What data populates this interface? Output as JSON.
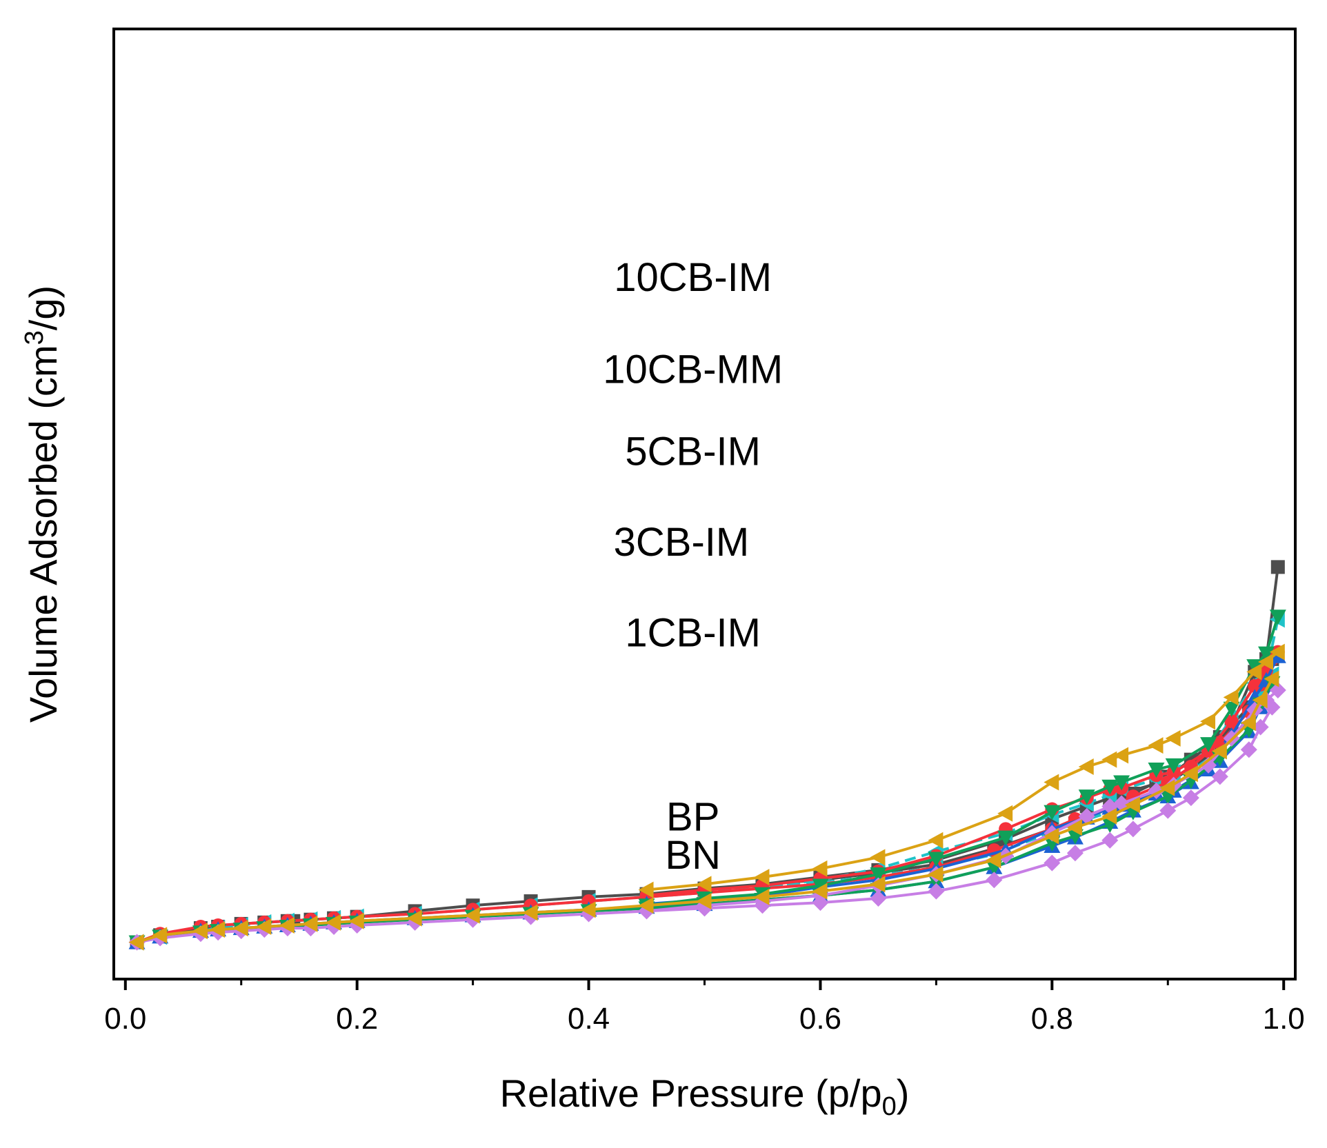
{
  "chart_data": {
    "type": "line",
    "xlabel": "Relative Pressure (p/p",
    "xlabel_sub": "0",
    "xlabel_end": ")",
    "ylabel": "Volume Adsorbed (cm",
    "ylabel_sup": "3",
    "ylabel_end": "/g)",
    "xlim": [
      -0.01,
      1.01
    ],
    "ylim": [
      -0.26,
      6.45
    ],
    "x_ticks": [
      0.0,
      0.2,
      0.4,
      0.6,
      0.8,
      1.0
    ],
    "x_tick_labels": [
      "0.0",
      "0.2",
      "0.4",
      "0.6",
      "0.8",
      "1.0"
    ],
    "y_ticks_shown": false,
    "grid": false,
    "legend": "inline labels above each curve",
    "series": [
      {
        "name": "BN",
        "color": "#4d4d4d",
        "marker": "square",
        "dashed": false,
        "label_at": [
          0.49,
          0.52
        ],
        "adsorption_x": [
          0.01,
          0.03,
          0.065,
          0.08,
          0.1,
          0.12,
          0.14,
          0.145,
          0.16,
          0.18,
          0.2,
          0.25,
          0.3,
          0.35,
          0.4,
          0.45,
          0.5,
          0.55,
          0.6,
          0.65,
          0.7,
          0.75,
          0.8,
          0.82,
          0.85,
          0.87,
          0.9,
          0.92,
          0.945,
          0.97,
          0.98,
          0.99
        ],
        "adsorption_y": [
          0.0,
          0.05,
          0.1,
          0.11,
          0.13,
          0.14,
          0.15,
          0.15,
          0.16,
          0.17,
          0.18,
          0.22,
          0.26,
          0.29,
          0.32,
          0.34,
          0.37,
          0.41,
          0.44,
          0.49,
          0.55,
          0.66,
          0.8,
          0.84,
          0.95,
          1.05,
          1.17,
          1.29,
          1.45,
          1.66,
          1.85,
          2.0
        ],
        "desorption_x": [
          0.995,
          0.985,
          0.975,
          0.955,
          0.935,
          0.905,
          0.89,
          0.86,
          0.85,
          0.83,
          0.8,
          0.76,
          0.7,
          0.65,
          0.6,
          0.55,
          0.5,
          0.45
        ],
        "desorption_y": [
          2.65,
          2.0,
          1.91,
          1.53,
          1.31,
          1.15,
          1.12,
          1.05,
          1.02,
          0.96,
          0.87,
          0.73,
          0.58,
          0.51,
          0.46,
          0.41,
          0.38,
          0.34
        ]
      },
      {
        "name": "BP",
        "color": "#1fc2c8",
        "marker": "triangle-left",
        "dashed": true,
        "label_at": [
          0.49,
          0.79
        ],
        "adsorption_x": [
          0.01,
          0.03,
          0.065,
          0.08,
          0.1,
          0.12,
          0.14,
          0.16,
          0.18,
          0.2,
          0.25,
          0.3,
          0.35,
          0.4,
          0.45,
          0.5,
          0.55,
          0.6,
          0.65,
          0.7,
          0.75,
          0.8,
          0.82,
          0.85,
          0.87,
          0.9,
          0.92,
          0.945,
          0.97,
          0.98,
          0.99
        ],
        "adsorption_y": [
          0.0,
          0.04,
          0.08,
          0.1,
          0.12,
          0.14,
          0.15,
          0.16,
          0.17,
          0.18,
          0.2,
          0.23,
          0.26,
          0.29,
          0.32,
          0.35,
          0.39,
          0.42,
          0.47,
          0.53,
          0.62,
          0.78,
          0.84,
          0.92,
          0.99,
          1.1,
          1.21,
          1.35,
          1.55,
          1.74,
          1.89
        ],
        "desorption_x": [
          0.995,
          0.985,
          0.975,
          0.955,
          0.935,
          0.905,
          0.89,
          0.86,
          0.85,
          0.83,
          0.8,
          0.76,
          0.7,
          0.65,
          0.6,
          0.55,
          0.5,
          0.45
        ],
        "desorption_y": [
          2.28,
          1.9,
          1.83,
          1.58,
          1.35,
          1.2,
          1.15,
          1.08,
          1.04,
          0.98,
          0.9,
          0.77,
          0.64,
          0.52,
          0.44,
          0.39,
          0.36,
          0.32
        ]
      },
      {
        "name": "1CB-IM",
        "color": "#f5313b",
        "marker": "circle",
        "dashed": false,
        "label_at": [
          0.49,
          2.09
        ],
        "adsorption_x": [
          0.01,
          0.03,
          0.065,
          0.08,
          0.1,
          0.12,
          0.14,
          0.16,
          0.18,
          0.2,
          0.25,
          0.3,
          0.35,
          0.4,
          0.45,
          0.5,
          0.55,
          0.6,
          0.65,
          0.7,
          0.75,
          0.8,
          0.82,
          0.85,
          0.87,
          0.9,
          0.92,
          0.945,
          0.97,
          0.98,
          0.99
        ],
        "adsorption_y": [
          0.0,
          0.06,
          0.11,
          0.12,
          0.13,
          0.14,
          0.15,
          0.16,
          0.17,
          0.18,
          0.2,
          0.23,
          0.26,
          0.29,
          0.32,
          0.35,
          0.38,
          0.41,
          0.46,
          0.53,
          0.65,
          0.8,
          0.87,
          0.95,
          1.03,
          1.13,
          1.24,
          1.41,
          1.63,
          1.82,
          2.0
        ],
        "desorption_x": [
          0.995,
          0.985,
          0.975,
          0.955,
          0.935,
          0.905,
          0.89,
          0.86,
          0.85,
          0.83,
          0.8,
          0.76,
          0.7,
          0.65,
          0.6,
          0.55,
          0.5,
          0.45
        ],
        "desorption_y": [
          2.05,
          1.92,
          1.81,
          1.56,
          1.35,
          1.2,
          1.18,
          1.09,
          1.08,
          1.02,
          0.94,
          0.8,
          0.61,
          0.5,
          0.45,
          0.4,
          0.37,
          0.33
        ]
      },
      {
        "name": "3CB-IM",
        "color": "#1c62d3",
        "marker": "triangle-up",
        "dashed": false,
        "label_at": [
          0.48,
          2.73
        ],
        "adsorption_x": [
          0.01,
          0.03,
          0.065,
          0.08,
          0.1,
          0.12,
          0.14,
          0.16,
          0.18,
          0.2,
          0.25,
          0.3,
          0.35,
          0.4,
          0.45,
          0.5,
          0.55,
          0.6,
          0.65,
          0.7,
          0.75,
          0.8,
          0.82,
          0.85,
          0.87,
          0.9,
          0.92,
          0.945,
          0.97,
          0.98,
          0.99
        ],
        "adsorption_y": [
          0.0,
          0.04,
          0.08,
          0.09,
          0.1,
          0.11,
          0.12,
          0.13,
          0.14,
          0.15,
          0.17,
          0.19,
          0.21,
          0.23,
          0.25,
          0.27,
          0.3,
          0.33,
          0.37,
          0.43,
          0.53,
          0.68,
          0.74,
          0.85,
          0.93,
          1.03,
          1.13,
          1.28,
          1.49,
          1.66,
          1.82
        ],
        "desorption_x": [
          0.995,
          0.985,
          0.975,
          0.955,
          0.935,
          0.905,
          0.89,
          0.86,
          0.85,
          0.83,
          0.8,
          0.76,
          0.7,
          0.65,
          0.6,
          0.55,
          0.5,
          0.45
        ],
        "desorption_y": [
          2.02,
          1.85,
          1.73,
          1.46,
          1.22,
          1.07,
          1.05,
          0.97,
          0.95,
          0.88,
          0.8,
          0.65,
          0.52,
          0.44,
          0.39,
          0.33,
          0.3,
          0.27
        ]
      },
      {
        "name": "5CB-IM",
        "color": "#10a059",
        "marker": "triangle-down",
        "dashed": false,
        "label_at": [
          0.49,
          3.37
        ],
        "adsorption_x": [
          0.01,
          0.03,
          0.065,
          0.08,
          0.1,
          0.12,
          0.14,
          0.16,
          0.18,
          0.2,
          0.25,
          0.3,
          0.35,
          0.4,
          0.45,
          0.5,
          0.55,
          0.6,
          0.65,
          0.7,
          0.75,
          0.8,
          0.82,
          0.85,
          0.87,
          0.9,
          0.92,
          0.945,
          0.97,
          0.98,
          0.99
        ],
        "adsorption_y": [
          0.0,
          0.04,
          0.07,
          0.08,
          0.09,
          0.1,
          0.11,
          0.12,
          0.13,
          0.14,
          0.16,
          0.18,
          0.2,
          0.22,
          0.24,
          0.27,
          0.3,
          0.33,
          0.37,
          0.43,
          0.53,
          0.7,
          0.75,
          0.83,
          0.92,
          1.03,
          1.14,
          1.3,
          1.5,
          1.68,
          1.83
        ],
        "desorption_x": [
          0.995,
          0.985,
          0.975,
          0.955,
          0.935,
          0.905,
          0.89,
          0.86,
          0.85,
          0.83,
          0.8,
          0.76,
          0.7,
          0.65,
          0.6,
          0.55,
          0.5,
          0.45
        ],
        "desorption_y": [
          2.3,
          2.04,
          1.95,
          1.65,
          1.4,
          1.25,
          1.22,
          1.13,
          1.1,
          1.03,
          0.92,
          0.74,
          0.59,
          0.48,
          0.4,
          0.34,
          0.31,
          0.26
        ]
      },
      {
        "name": "10CB-MM",
        "color": "#c77ee5",
        "marker": "diamond",
        "dashed": false,
        "label_at": [
          0.49,
          3.95
        ],
        "adsorption_x": [
          0.01,
          0.03,
          0.065,
          0.08,
          0.1,
          0.12,
          0.14,
          0.16,
          0.18,
          0.2,
          0.25,
          0.3,
          0.35,
          0.4,
          0.45,
          0.5,
          0.55,
          0.6,
          0.65,
          0.7,
          0.75,
          0.8,
          0.82,
          0.85,
          0.87,
          0.9,
          0.92,
          0.945,
          0.97,
          0.98,
          0.99
        ],
        "adsorption_y": [
          0.0,
          0.03,
          0.06,
          0.07,
          0.08,
          0.09,
          0.1,
          0.1,
          0.11,
          0.12,
          0.14,
          0.16,
          0.18,
          0.2,
          0.22,
          0.24,
          0.26,
          0.28,
          0.31,
          0.36,
          0.44,
          0.56,
          0.63,
          0.72,
          0.8,
          0.93,
          1.02,
          1.17,
          1.36,
          1.52,
          1.66
        ],
        "desorption_x": [
          0.995,
          0.985,
          0.975,
          0.955,
          0.935,
          0.905,
          0.89,
          0.86,
          0.85,
          0.83,
          0.8,
          0.76,
          0.7,
          0.65,
          0.6,
          0.55,
          0.5,
          0.45
        ],
        "desorption_y": [
          1.78,
          1.71,
          1.64,
          1.44,
          1.25,
          1.11,
          1.07,
          0.98,
          0.96,
          0.89,
          0.77,
          0.61,
          0.48,
          0.4,
          0.33,
          0.29,
          0.26,
          0.22
        ]
      },
      {
        "name": "10CB-IM",
        "color": "#dba214",
        "marker": "triangle-left",
        "dashed": false,
        "label_at": [
          0.49,
          4.6
        ],
        "adsorption_x": [
          0.01,
          0.03,
          0.065,
          0.08,
          0.1,
          0.12,
          0.14,
          0.16,
          0.18,
          0.2,
          0.25,
          0.3,
          0.35,
          0.4,
          0.45,
          0.5,
          0.55,
          0.6,
          0.65,
          0.7,
          0.75,
          0.8,
          0.82,
          0.85,
          0.87,
          0.9,
          0.92,
          0.945,
          0.97,
          0.98,
          0.99
        ],
        "adsorption_y": [
          0.0,
          0.05,
          0.08,
          0.09,
          0.1,
          0.11,
          0.12,
          0.13,
          0.14,
          0.15,
          0.17,
          0.19,
          0.21,
          0.23,
          0.26,
          0.29,
          0.32,
          0.36,
          0.41,
          0.48,
          0.58,
          0.75,
          0.81,
          0.89,
          0.97,
          1.09,
          1.19,
          1.35,
          1.55,
          1.71,
          1.86
        ],
        "desorption_x": [
          0.995,
          0.985,
          0.975,
          0.955,
          0.935,
          0.905,
          0.89,
          0.86,
          0.85,
          0.83,
          0.8,
          0.76,
          0.7,
          0.65,
          0.6,
          0.55,
          0.5,
          0.45
        ],
        "desorption_y": [
          2.05,
          1.98,
          1.91,
          1.73,
          1.56,
          1.44,
          1.39,
          1.32,
          1.29,
          1.24,
          1.13,
          0.91,
          0.72,
          0.6,
          0.52,
          0.46,
          0.41,
          0.37
        ]
      }
    ]
  }
}
